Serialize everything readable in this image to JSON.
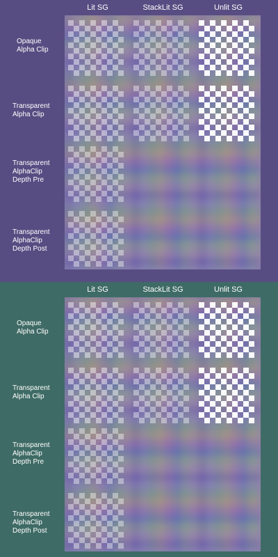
{
  "columns": [
    "Lit SG",
    "StackLit SG",
    "Unlit SG"
  ],
  "rows": [
    [
      "Opaque",
      "Alpha Clip"
    ],
    [
      "Transparent",
      "Alpha Clip"
    ],
    [
      "Transparent",
      "AlphaClip",
      "Depth Pre"
    ],
    [
      "Transparent",
      "AlphaClip",
      "Depth Post"
    ]
  ],
  "panels": [
    {
      "background": "#584d82",
      "variant": "purple"
    },
    {
      "background": "#3f6b66",
      "variant": "teal"
    }
  ]
}
